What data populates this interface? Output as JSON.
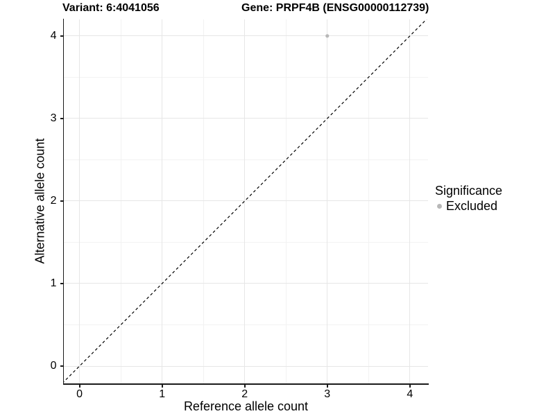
{
  "title": {
    "variant_label": "Variant: 6:4041056",
    "gene_label": "Gene: PRPF4B (ENSG00000112739)"
  },
  "legend": {
    "title": "Significance",
    "position": "right",
    "items": [
      {
        "label": "Excluded",
        "color": "#b8b8b8",
        "shape": "circle"
      }
    ]
  },
  "chart_data": {
    "type": "scatter",
    "title": "Variant: 6:4041056  Gene: PRPF4B (ENSG00000112739)",
    "xlabel": "Reference allele count",
    "ylabel": "Alternative allele count",
    "xlim": [
      -0.19,
      4.22
    ],
    "ylim": [
      -0.21,
      4.2
    ],
    "xticks": [
      0,
      1,
      2,
      3,
      4
    ],
    "yticks": [
      0,
      1,
      2,
      3,
      4
    ],
    "x_minor_ticks": [
      0.5,
      1.5,
      2.5,
      3.5
    ],
    "y_minor_ticks": [
      0.5,
      1.5,
      2.5,
      3.5
    ],
    "grid": true,
    "legend_position": "right",
    "series": [
      {
        "name": "Excluded",
        "color": "#b8b8b8",
        "marker": "circle",
        "points": [
          {
            "x": 3,
            "y": 4
          }
        ]
      }
    ],
    "reference_line": {
      "equation": "y = x",
      "style": "dashed",
      "color": "#000000",
      "from": [
        -0.21,
        -0.21
      ],
      "to": [
        4.22,
        4.22
      ]
    }
  }
}
